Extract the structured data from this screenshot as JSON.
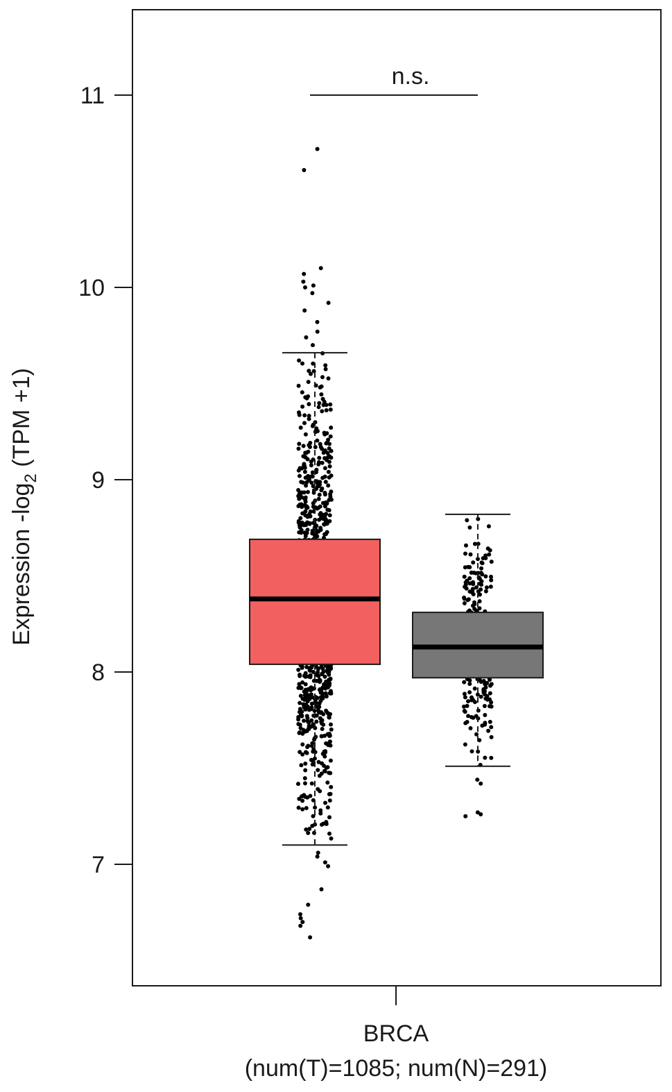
{
  "chart_data": {
    "type": "box",
    "ylabel_main": "Expression -log",
    "ylabel_sub": "2",
    "ylabel_tail": " (TPM +1)",
    "ylim": [
      6.4,
      11.5
    ],
    "yticks": [
      {
        "value": 7,
        "label": "7"
      },
      {
        "value": 8,
        "label": "8"
      },
      {
        "value": 9,
        "label": "9"
      },
      {
        "value": 10,
        "label": "10"
      },
      {
        "value": 11,
        "label": "11"
      }
    ],
    "category": "BRCA",
    "counts_label": "(num(T)=1085; num(N)=291)",
    "significance": {
      "label": "n.s.",
      "y": 11.0
    },
    "series": [
      {
        "name": "T",
        "color": "#f26060",
        "n": 1085,
        "whisker_low": 7.1,
        "q1": 8.04,
        "median": 8.38,
        "q3": 8.69,
        "whisker_high": 9.66,
        "outliers": [
          10.72,
          10.61,
          10.1,
          10.07,
          10.03,
          10.01,
          10.0,
          9.97,
          9.92,
          9.88,
          9.82,
          9.77,
          9.74,
          9.7,
          6.62,
          6.68,
          6.7,
          6.72,
          6.74,
          6.79,
          6.87,
          6.99,
          7.01,
          7.04,
          7.06
        ]
      },
      {
        "name": "N",
        "color": "#777777",
        "n": 291,
        "whisker_low": 7.51,
        "q1": 7.97,
        "median": 8.13,
        "q3": 8.31,
        "whisker_high": 8.82,
        "outliers": [
          7.44,
          7.42,
          7.26,
          7.25,
          7.27
        ]
      }
    ]
  }
}
